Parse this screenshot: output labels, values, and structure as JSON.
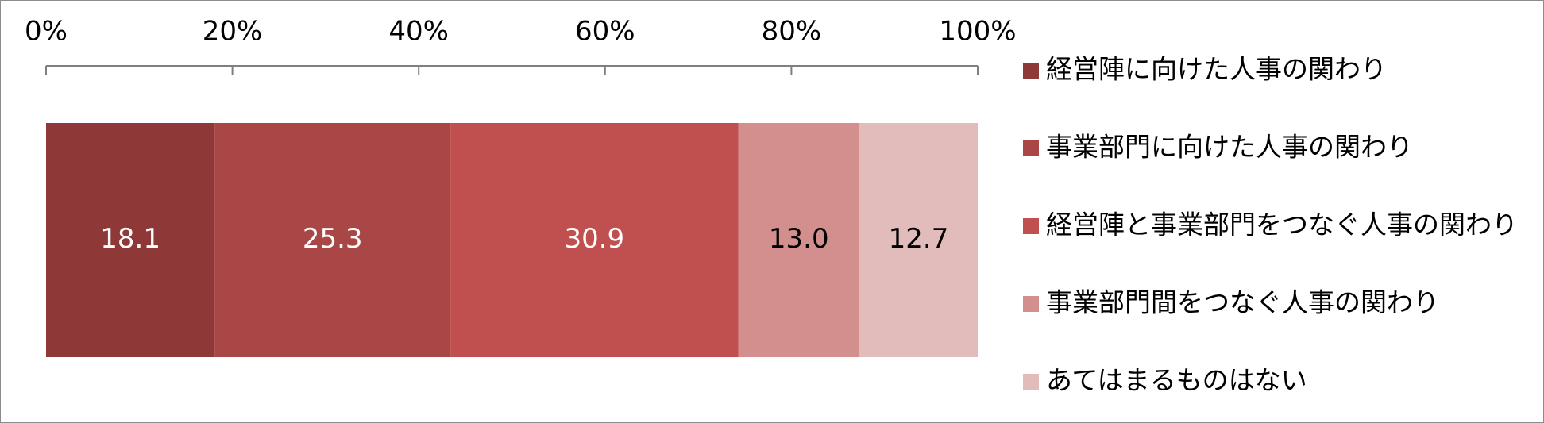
{
  "chart_data": {
    "type": "bar",
    "orientation": "horizontal",
    "stacked": "100%",
    "title": "",
    "xlabel": "",
    "ylabel": "",
    "xlim": [
      0,
      100
    ],
    "ticks": [
      "0%",
      "20%",
      "40%",
      "60%",
      "80%",
      "100%"
    ],
    "tick_values": [
      0,
      20,
      40,
      60,
      80,
      100
    ],
    "grid": false,
    "legend_position": "right",
    "series": [
      {
        "name": "経営陣に向けた人事の関わり",
        "value": 18.1,
        "label": "18.1",
        "color": "#8e3838",
        "label_color": "#ffffff"
      },
      {
        "name": "事業部門に向けた人事の関わり",
        "value": 25.3,
        "label": "25.3",
        "color": "#a84746",
        "label_color": "#ffffff"
      },
      {
        "name": "経営陣と事業部門をつなぐ人事の関わり",
        "value": 30.9,
        "label": "30.9",
        "color": "#c0504f",
        "label_color": "#ffffff"
      },
      {
        "name": "事業部門間をつなぐ人事の関わり",
        "value": 13.0,
        "label": "13.0",
        "color": "#d38f8e",
        "label_color": "#000000"
      },
      {
        "name": "あてはまるものはない",
        "value": 12.7,
        "label": "12.7",
        "color": "#e2bbbb",
        "label_color": "#000000"
      }
    ]
  },
  "colors": {
    "axis": "#808080",
    "frame": "#8c8c8c"
  }
}
